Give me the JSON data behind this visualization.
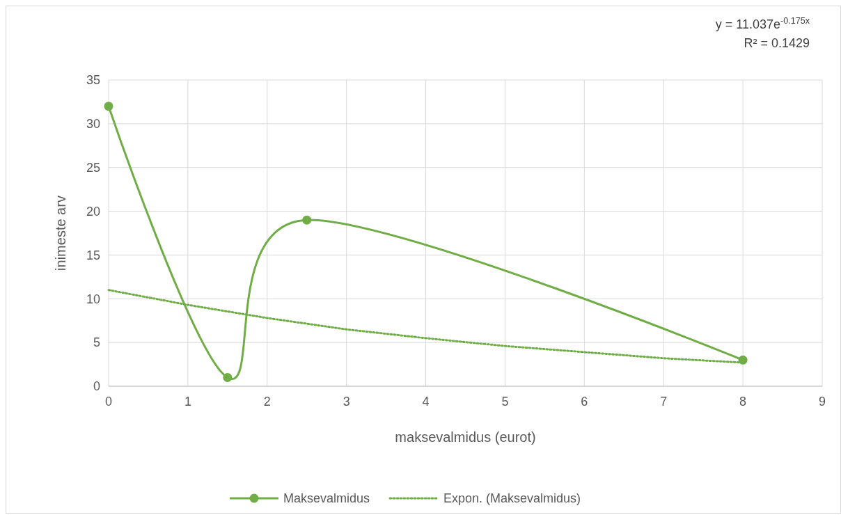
{
  "chart_data": {
    "type": "line",
    "xlabel": "maksevalmidus (eurot)",
    "ylabel": "inimeste arv",
    "xlim": [
      0,
      9
    ],
    "xticks": [
      0,
      1,
      2,
      3,
      4,
      5,
      6,
      7,
      8,
      9
    ],
    "ylim": [
      0,
      35
    ],
    "yticks": [
      0,
      5,
      10,
      15,
      20,
      25,
      30,
      35
    ],
    "grid": true,
    "legend": "bottom",
    "marker": "circle",
    "line_style": "solid",
    "series": [
      {
        "name": "Maksevalmidus",
        "color": "#70ad47",
        "x": [
          0,
          1.5,
          2.5,
          8
        ],
        "values": [
          32,
          1,
          19,
          3
        ]
      },
      {
        "name": "Expon. (Maksevalmidus)",
        "color": "#70ad47",
        "marker": "none",
        "line_style": "dotted",
        "x": [
          0,
          1,
          2,
          3,
          4,
          5,
          6,
          7,
          8
        ],
        "values": [
          11.0,
          9.3,
          7.8,
          6.5,
          5.5,
          4.6,
          3.9,
          3.2,
          2.7
        ]
      }
    ],
    "annotations": [
      "y = 11.037e$^{-0.175x}$",
      "R² = 0.1429"
    ]
  }
}
